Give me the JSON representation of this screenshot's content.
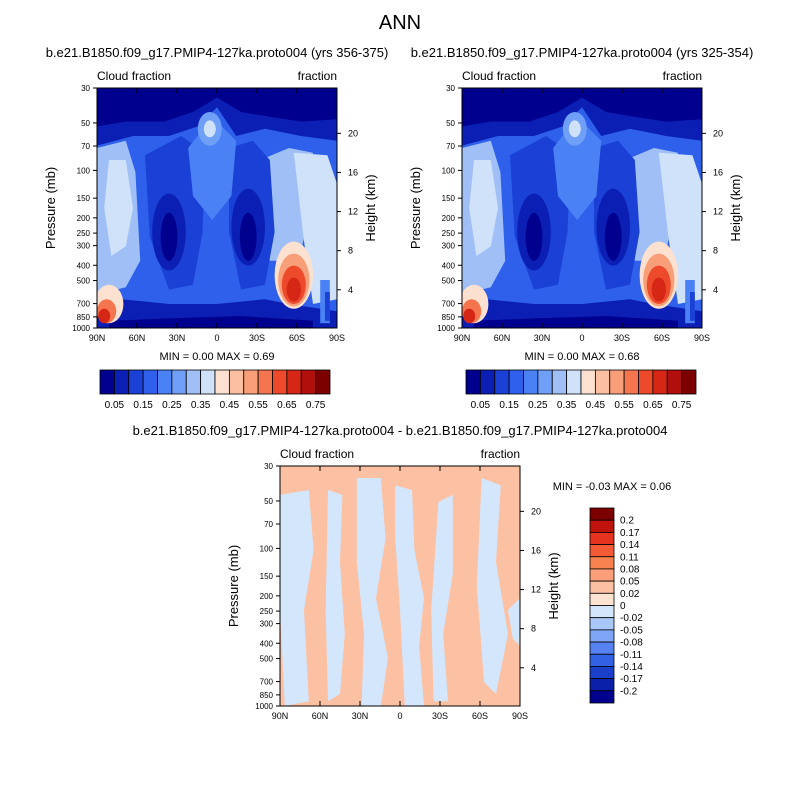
{
  "figure": {
    "title": "ANN"
  },
  "chart_data": [
    {
      "type": "heatmap",
      "title": "b.e21.B1850.f09_g17.PMIP4-127ka.proto004 (yrs 356-375)",
      "left_label": "Cloud fraction",
      "right_label": "fraction",
      "ylabel": "Pressure (mb)",
      "ylabel_right": "Height (km)",
      "x_ticks": [
        "90N",
        "60N",
        "30N",
        "0",
        "30S",
        "60S",
        "90S"
      ],
      "y_ticks": [
        30,
        50,
        70,
        100,
        150,
        200,
        250,
        300,
        400,
        500,
        700,
        850,
        1000
      ],
      "height_ticks": [
        20,
        16,
        12,
        8,
        4
      ],
      "ylim": [
        30,
        1000
      ],
      "min_label": "MIN =",
      "min_value": "0.00",
      "max_label": "MAX =",
      "max_value": "0.69",
      "colorbar_labels": [
        "0.05",
        "0.15",
        "0.25",
        "0.35",
        "0.45",
        "0.55",
        "0.65",
        "0.75"
      ],
      "colorbar_colors": [
        "#00008e",
        "#0b1fb5",
        "#1a40d6",
        "#2e60ec",
        "#4a82f6",
        "#6f9ff7",
        "#9fbff6",
        "#cfe2fa",
        "#fde1d0",
        "#fbc0a2",
        "#f89e78",
        "#f5754f",
        "#ec4a2a",
        "#d52616",
        "#b00f0c",
        "#7d0001"
      ]
    },
    {
      "type": "heatmap",
      "title": "b.e21.B1850.f09_g17.PMIP4-127ka.proto004 (yrs 325-354)",
      "left_label": "Cloud fraction",
      "right_label": "fraction",
      "ylabel": "Pressure (mb)",
      "ylabel_right": "Height (km)",
      "x_ticks": [
        "90N",
        "60N",
        "30N",
        "0",
        "30S",
        "60S",
        "90S"
      ],
      "y_ticks": [
        30,
        50,
        70,
        100,
        150,
        200,
        250,
        300,
        400,
        500,
        700,
        850,
        1000
      ],
      "height_ticks": [
        20,
        16,
        12,
        8,
        4
      ],
      "ylim": [
        30,
        1000
      ],
      "min_label": "MIN =",
      "min_value": "0.00",
      "max_label": "MAX =",
      "max_value": "0.68",
      "colorbar_labels": [
        "0.05",
        "0.15",
        "0.25",
        "0.35",
        "0.45",
        "0.55",
        "0.65",
        "0.75"
      ],
      "colorbar_colors": [
        "#00008e",
        "#0b1fb5",
        "#1a40d6",
        "#2e60ec",
        "#4a82f6",
        "#6f9ff7",
        "#9fbff6",
        "#cfe2fa",
        "#fde1d0",
        "#fbc0a2",
        "#f89e78",
        "#f5754f",
        "#ec4a2a",
        "#d52616",
        "#b00f0c",
        "#7d0001"
      ]
    },
    {
      "type": "heatmap",
      "title": "b.e21.B1850.f09_g17.PMIP4-127ka.proto004 - b.e21.B1850.f09_g17.PMIP4-127ka.proto004",
      "left_label": "Cloud fraction",
      "right_label": "fraction",
      "ylabel": "Pressure (mb)",
      "ylabel_right": "Height (km)",
      "x_ticks": [
        "90N",
        "60N",
        "30N",
        "0",
        "30S",
        "60S",
        "90S"
      ],
      "y_ticks": [
        30,
        50,
        70,
        100,
        150,
        200,
        250,
        300,
        400,
        500,
        700,
        850,
        1000
      ],
      "height_ticks": [
        20,
        16,
        12,
        8,
        4
      ],
      "ylim": [
        30,
        1000
      ],
      "min_label": "MIN =",
      "min_value": "-0.03",
      "max_label": "MAX =",
      "max_value": "0.06",
      "colorbar_labels": [
        "0.2",
        "0.17",
        "0.14",
        "0.11",
        "0.08",
        "0.05",
        "0.02",
        "0",
        "-0.02",
        "-0.05",
        "-0.08",
        "-0.11",
        "-0.14",
        "-0.17",
        "-0.2"
      ],
      "colorbar_colors": [
        "#7d0001",
        "#c1130e",
        "#e63320",
        "#f45a36",
        "#f7814f",
        "#fa9f7a",
        "#fcc0a3",
        "#fde3d2",
        "#d4e6fb",
        "#a9c7f8",
        "#7fa5f6",
        "#5683f1",
        "#3361e4",
        "#1a3fc9",
        "#0b20a8",
        "#00008e"
      ]
    }
  ]
}
